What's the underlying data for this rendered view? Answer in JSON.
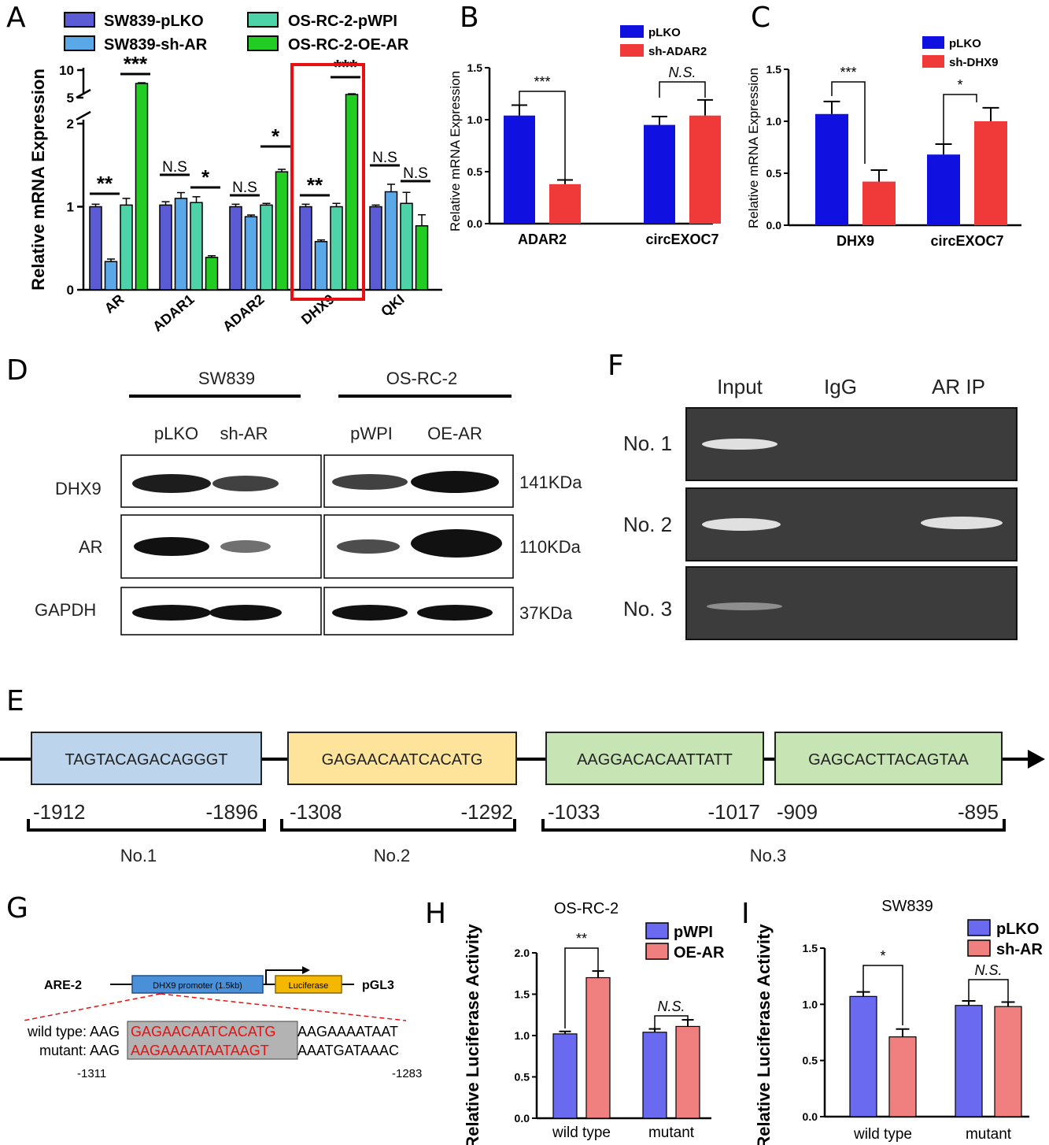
{
  "panel_letters": [
    "A",
    "B",
    "C",
    "D",
    "E",
    "F",
    "G",
    "H",
    "I"
  ],
  "colors": {
    "pLKO_A": "#5b5bd6",
    "shAR_A": "#5aa8e8",
    "pWPI_A": "#4ed3a8",
    "OEAR_A": "#22cc22",
    "blue": "#1010e0",
    "red": "#f03a3a",
    "purple_H": "#6a6af0",
    "pink_H": "#f08080",
    "highlight": "#e81010"
  },
  "chart_data": [
    {
      "id": "A",
      "type": "bar",
      "ylabel": "Relative mRNA Expression",
      "categories": [
        "AR",
        "ADAR1",
        "ADAR2",
        "DHX9",
        "QKI"
      ],
      "series": [
        {
          "name": "SW839-pLKO",
          "values": [
            1.0,
            1.02,
            1.0,
            1.0,
            1.0
          ],
          "err": [
            0.03,
            0.04,
            0.03,
            0.03,
            0.02
          ]
        },
        {
          "name": "SW839-sh-AR",
          "values": [
            0.34,
            1.1,
            0.88,
            0.58,
            1.18
          ],
          "err": [
            0.03,
            0.07,
            0.02,
            0.02,
            0.09
          ]
        },
        {
          "name": "OS-RC-2-pWPI",
          "values": [
            1.02,
            1.05,
            1.02,
            1.0,
            1.04
          ],
          "err": [
            0.08,
            0.07,
            0.02,
            0.04,
            0.2
          ]
        },
        {
          "name": "OS-RC-2-OE-AR",
          "values": [
            7.5,
            0.39,
            1.42,
            5.6,
            0.77
          ],
          "err": [
            0.3,
            0.02,
            0.03,
            0.3,
            0.2
          ]
        }
      ],
      "y_ticks": [
        "0",
        "1",
        "2",
        "5",
        "10"
      ],
      "significance": [
        "**",
        "***",
        "N.S",
        "*",
        "N.S",
        "*",
        "**",
        "***",
        "N.S",
        "N.S"
      ]
    },
    {
      "id": "B",
      "type": "bar",
      "ylabel": "Relative mRNA Expression",
      "categories": [
        "ADAR2",
        "circEXOC7"
      ],
      "series": [
        {
          "name": "pLKO",
          "values": [
            1.04,
            0.95
          ],
          "err": [
            0.1,
            0.08
          ]
        },
        {
          "name": "sh-ADAR2",
          "values": [
            0.38,
            1.04
          ],
          "err": [
            0.04,
            0.15
          ]
        }
      ],
      "ylim": [
        0,
        1.5
      ],
      "y_ticks": [
        "0.0",
        "0.5",
        "1.0",
        "1.5"
      ],
      "significance": [
        "***",
        "N.S."
      ]
    },
    {
      "id": "C",
      "type": "bar",
      "ylabel": "Relative mRNA Expression",
      "categories": [
        "DHX9",
        "circEXOC7"
      ],
      "series": [
        {
          "name": "pLKO",
          "values": [
            1.07,
            0.68
          ],
          "err": [
            0.12,
            0.1
          ]
        },
        {
          "name": "sh-DHX9",
          "values": [
            0.42,
            1.0
          ],
          "err": [
            0.11,
            0.13
          ]
        }
      ],
      "ylim": [
        0,
        1.5
      ],
      "y_ticks": [
        "0.0",
        "0.5",
        "1.0",
        "1.5"
      ],
      "significance": [
        "***",
        "*"
      ]
    },
    {
      "id": "H",
      "type": "bar",
      "title": "OS-RC-2",
      "ylabel": "Relative Luciferase Activity",
      "categories": [
        "wild type",
        "mutant"
      ],
      "series": [
        {
          "name": "pWPI",
          "values": [
            1.02,
            1.04
          ],
          "err": [
            0.03,
            0.04
          ]
        },
        {
          "name": "OE-AR",
          "values": [
            1.7,
            1.11
          ],
          "err": [
            0.08,
            0.08
          ]
        }
      ],
      "ylim": [
        0,
        2.0
      ],
      "y_ticks": [
        "0.0",
        "0.5",
        "1.0",
        "1.5",
        "2.0"
      ],
      "significance": [
        "**",
        "N.S."
      ]
    },
    {
      "id": "I",
      "type": "bar",
      "title": "SW839",
      "ylabel": "Relative Luciferase Activity",
      "categories": [
        "wild type",
        "mutant"
      ],
      "series": [
        {
          "name": "pLKO",
          "values": [
            1.07,
            0.99
          ],
          "err": [
            0.04,
            0.04
          ]
        },
        {
          "name": "sh-AR",
          "values": [
            0.71,
            0.98
          ],
          "err": [
            0.07,
            0.04
          ]
        }
      ],
      "ylim": [
        0,
        1.5
      ],
      "y_ticks": [
        "0.0",
        "0.5",
        "1.0",
        "1.5"
      ],
      "significance": [
        "*",
        "N.S."
      ]
    }
  ],
  "panel_D": {
    "groups": [
      "SW839",
      "OS-RC-2"
    ],
    "lanes": [
      "pLKO",
      "sh-AR",
      "pWPI",
      "OE-AR"
    ],
    "proteins": [
      "DHX9",
      "AR",
      "GAPDH"
    ],
    "sizes": [
      "141KDa",
      "110KDa",
      "37KDa"
    ]
  },
  "panel_F": {
    "columns": [
      "Input",
      "IgG",
      "AR IP"
    ],
    "rows": [
      "No. 1",
      "No. 2",
      "No. 3"
    ]
  },
  "panel_E": {
    "sites": [
      {
        "seq": "TAGTACAGACAGGGT",
        "start": "-1912",
        "end": "-1896",
        "color": "#bcd5ec"
      },
      {
        "seq": "GAGAACAATCACATG",
        "start": "-1308",
        "end": "-1292",
        "color": "#fde49a"
      },
      {
        "seq": "AAGGACACAATTATT",
        "start": "-1033",
        "end": "-1017",
        "color": "#c7e4b4"
      },
      {
        "seq": "GAGCACTTACAGTAA",
        "start": "-909",
        "end": "-895",
        "color": "#c7e4b4"
      }
    ],
    "groups": [
      "No.1",
      "No.2",
      "No.3"
    ]
  },
  "panel_G": {
    "construct_name": "ARE-2",
    "promoter_label": "DHX9 promoter (1.5kb)",
    "reporter_label": "Luciferase",
    "vector_label": "pGL3",
    "wt_prefix_label": "wild type:",
    "wt_left": "AAG",
    "wt_site": "GAGAACAATCACATG",
    "wt_right": "AAGAAAATAAT",
    "mut_prefix_label": "mutant:",
    "mut_left": "AAG",
    "mut_site": "AAGAAAATAATAAGT",
    "mut_right": "AAATGATAAAC",
    "pos_left": "-1311",
    "pos_right": "-1283"
  }
}
